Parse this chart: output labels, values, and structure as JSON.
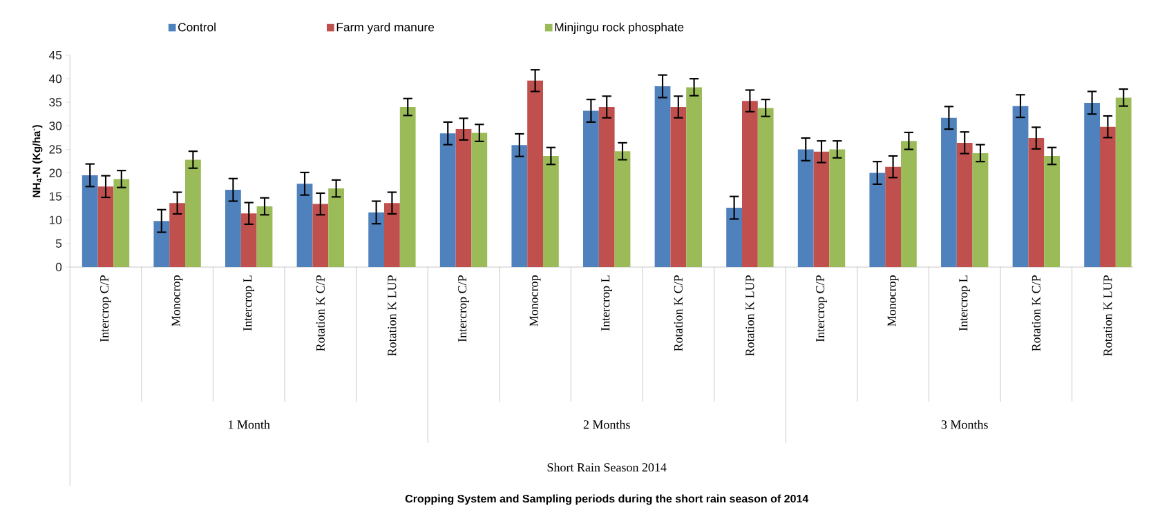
{
  "chart_data": {
    "type": "bar",
    "ylabel": "NH$_{4}$-N (Kg/ha$^{-}$)",
    "categories": [
      "Intercrop C/P",
      "Monocrop",
      "Intercrop L",
      "Rotation K C/P",
      "Rotation K LUP",
      "Intercrop C/P",
      "Monocrop",
      "Intercrop L",
      "Rotation K C/P",
      "Rotation K LUP",
      "Intercrop C/P",
      "Monocrop",
      "Intercrop L",
      "Rotation K C/P",
      "Rotation K LUP"
    ],
    "series": [
      {
        "name": "Control",
        "color": "#4f81bd",
        "values": [
          19.5,
          9.8,
          16.4,
          17.7,
          11.6,
          28.4,
          25.9,
          33.2,
          38.4,
          12.6,
          25.0,
          20.0,
          31.7,
          34.2,
          34.9
        ],
        "errors": [
          2.4,
          2.4,
          2.4,
          2.4,
          2.4,
          2.4,
          2.4,
          2.4,
          2.4,
          2.4,
          2.4,
          2.4,
          2.4,
          2.4,
          2.4
        ]
      },
      {
        "name": "Farm yard manure",
        "color": "#c0504d",
        "values": [
          17.1,
          13.6,
          11.4,
          13.4,
          13.6,
          29.3,
          39.6,
          34.0,
          34.0,
          35.3,
          24.5,
          21.3,
          26.4,
          27.4,
          29.8
        ],
        "errors": [
          2.3,
          2.3,
          2.3,
          2.3,
          2.3,
          2.3,
          2.3,
          2.3,
          2.3,
          2.3,
          2.3,
          2.3,
          2.3,
          2.3,
          2.3
        ]
      },
      {
        "name": "Minjingu rock phosphate",
        "color": "#9bbb59",
        "values": [
          18.7,
          22.8,
          12.9,
          16.7,
          34.0,
          28.5,
          23.6,
          24.6,
          38.2,
          33.8,
          25.0,
          26.8,
          24.2,
          23.6,
          36.0
        ],
        "errors": [
          1.8,
          1.8,
          1.8,
          1.8,
          1.8,
          1.8,
          1.8,
          1.8,
          1.8,
          1.8,
          1.8,
          1.8,
          1.8,
          1.8,
          1.8
        ]
      }
    ],
    "ylim": [
      0,
      45
    ],
    "yticks": [
      0,
      5,
      10,
      15,
      20,
      25,
      30,
      35,
      40,
      45
    ],
    "legend": "top",
    "annotations": [
      "1 Month",
      "2 Months",
      "3 Months",
      "Short Rain Season  2014",
      "Cropping  System and Sampling periods during  the short rain season of 2014"
    ]
  }
}
